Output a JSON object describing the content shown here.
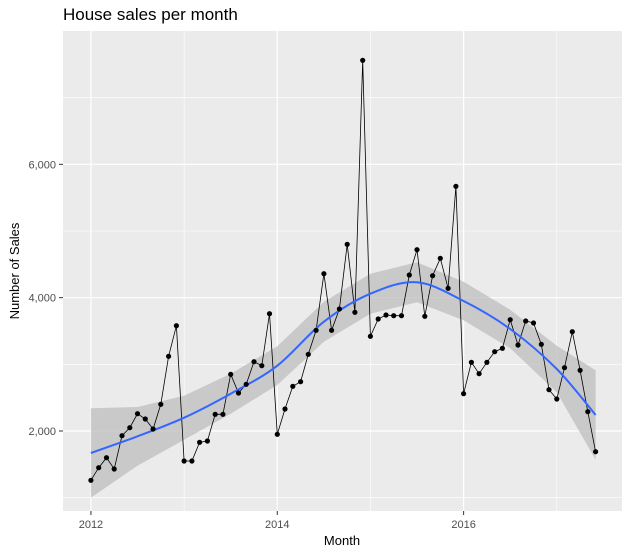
{
  "chart_data": {
    "type": "line",
    "title": "House sales per month",
    "xlabel": "Month",
    "ylabel": "Number of Sales",
    "x_ticks": [
      {
        "value": 2012,
        "label": "2012"
      },
      {
        "value": 2014,
        "label": "2014"
      },
      {
        "value": 2016,
        "label": "2016"
      }
    ],
    "y_ticks": [
      {
        "value": 2000,
        "label": "2,000"
      },
      {
        "value": 4000,
        "label": "4,000"
      },
      {
        "value": 6000,
        "label": "6,000"
      }
    ],
    "xlim": [
      2011.7,
      2017.7
    ],
    "ylim": [
      800,
      8000
    ],
    "grid": true,
    "colors": {
      "panel": "#ebebeb",
      "grid": "#ffffff",
      "line": "#000000",
      "points": "#000000",
      "smooth": "#3366ff",
      "ribbon": "#bdbdbd"
    },
    "series": [
      {
        "kind": "observed",
        "points": [
          [
            "2012-01",
            1260
          ],
          [
            "2012-02",
            1450
          ],
          [
            "2012-03",
            1600
          ],
          [
            "2012-04",
            1430
          ],
          [
            "2012-05",
            1930
          ],
          [
            "2012-06",
            2050
          ],
          [
            "2012-07",
            2260
          ],
          [
            "2012-08",
            2180
          ],
          [
            "2012-09",
            2030
          ],
          [
            "2012-10",
            2400
          ],
          [
            "2012-11",
            3120
          ],
          [
            "2012-12",
            3580
          ],
          [
            "2013-01",
            1550
          ],
          [
            "2013-02",
            1550
          ],
          [
            "2013-03",
            1830
          ],
          [
            "2013-04",
            1850
          ],
          [
            "2013-05",
            2250
          ],
          [
            "2013-06",
            2250
          ],
          [
            "2013-07",
            2850
          ],
          [
            "2013-08",
            2570
          ],
          [
            "2013-09",
            2700
          ],
          [
            "2013-10",
            3040
          ],
          [
            "2013-11",
            2980
          ],
          [
            "2013-12",
            3760
          ],
          [
            "2014-01",
            1950
          ],
          [
            "2014-02",
            2330
          ],
          [
            "2014-03",
            2670
          ],
          [
            "2014-04",
            2740
          ],
          [
            "2014-05",
            3150
          ],
          [
            "2014-06",
            3510
          ],
          [
            "2014-07",
            4360
          ],
          [
            "2014-08",
            3510
          ],
          [
            "2014-09",
            3830
          ],
          [
            "2014-10",
            4800
          ],
          [
            "2014-11",
            3780
          ],
          [
            "2014-12",
            7560
          ],
          [
            "2015-01",
            3420
          ],
          [
            "2015-02",
            3680
          ],
          [
            "2015-03",
            3740
          ],
          [
            "2015-04",
            3730
          ],
          [
            "2015-05",
            3730
          ],
          [
            "2015-06",
            4340
          ],
          [
            "2015-07",
            4720
          ],
          [
            "2015-08",
            3720
          ],
          [
            "2015-09",
            4330
          ],
          [
            "2015-10",
            4590
          ],
          [
            "2015-11",
            4140
          ],
          [
            "2015-12",
            5670
          ],
          [
            "2016-01",
            2560
          ],
          [
            "2016-02",
            3030
          ],
          [
            "2016-03",
            2860
          ],
          [
            "2016-04",
            3030
          ],
          [
            "2016-05",
            3190
          ],
          [
            "2016-06",
            3240
          ],
          [
            "2016-07",
            3670
          ],
          [
            "2016-08",
            3290
          ],
          [
            "2016-09",
            3650
          ],
          [
            "2016-10",
            3620
          ],
          [
            "2016-11",
            3300
          ],
          [
            "2016-12",
            2620
          ],
          [
            "2017-01",
            2480
          ],
          [
            "2017-02",
            2950
          ],
          [
            "2017-03",
            3490
          ],
          [
            "2017-04",
            2910
          ],
          [
            "2017-05",
            2290
          ],
          [
            "2017-06",
            1690
          ]
        ]
      },
      {
        "kind": "smooth",
        "points": [
          [
            "2012-01",
            1670,
            1000,
            2340
          ],
          [
            "2012-07",
            1920,
            1480,
            2360
          ],
          [
            "2013-01",
            2200,
            1870,
            2530
          ],
          [
            "2013-07",
            2560,
            2260,
            2860
          ],
          [
            "2014-01",
            2980,
            2690,
            3270
          ],
          [
            "2014-07",
            3640,
            3340,
            3940
          ],
          [
            "2015-01",
            4060,
            3760,
            4360
          ],
          [
            "2015-07",
            4230,
            3930,
            4530
          ],
          [
            "2016-01",
            3950,
            3660,
            4240
          ],
          [
            "2016-07",
            3530,
            3240,
            3820
          ],
          [
            "2017-01",
            2930,
            2580,
            3280
          ],
          [
            "2017-06",
            2240,
            1570,
            2910
          ]
        ]
      }
    ]
  }
}
